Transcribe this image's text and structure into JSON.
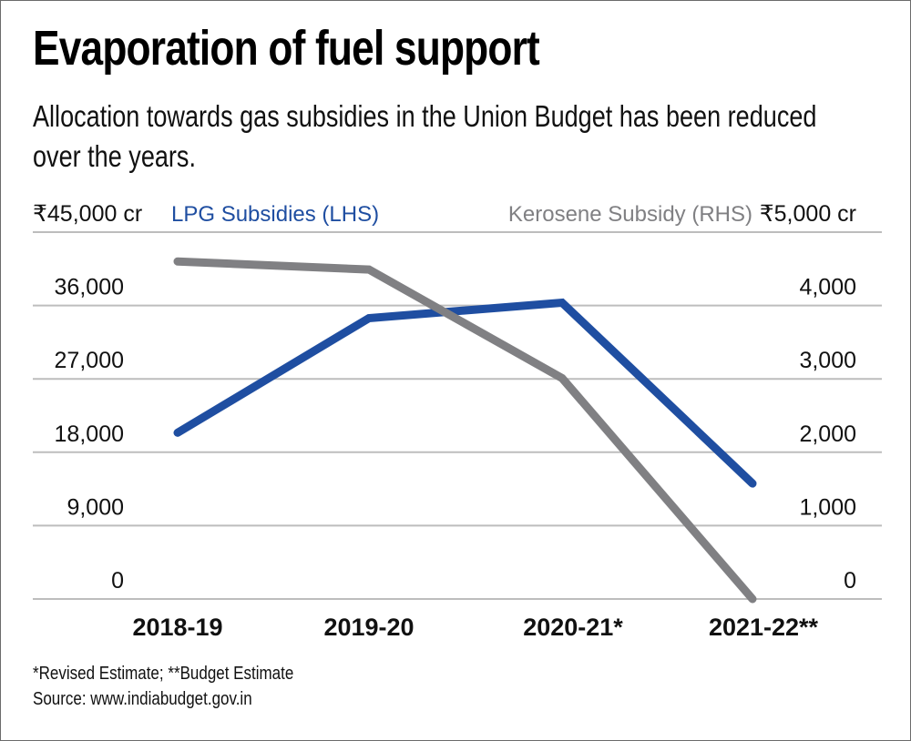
{
  "header": {
    "title": "Evaporation of fuel support",
    "subtitle": "Allocation towards gas subsidies in the Union Budget has been reduced over the years."
  },
  "footer": {
    "note": "*Revised Estimate;  **Budget Estimate",
    "source": "Source: www.indiabudget.gov.in"
  },
  "chart_data": {
    "type": "line",
    "title": "Evaporation of fuel support",
    "categories": [
      "2018-19",
      "2019-20",
      "2020-21*",
      "2021-22**"
    ],
    "left_axis": {
      "top_label": "₹45,000 cr",
      "ticks": [
        0,
        9000,
        18000,
        27000,
        36000,
        45000
      ],
      "tick_labels": [
        "0",
        "9,000",
        "18,000",
        "27,000",
        "36,000",
        "₹45,000 cr"
      ],
      "range": [
        0,
        45000
      ]
    },
    "right_axis": {
      "top_label": "₹5,000 cr",
      "ticks": [
        0,
        1000,
        2000,
        3000,
        4000,
        5000
      ],
      "tick_labels": [
        "0",
        "1,000",
        "2,000",
        "3,000",
        "4,000",
        "₹5,000 cr"
      ],
      "range": [
        0,
        5000
      ]
    },
    "series": [
      {
        "name": "LPG Subsidies (LHS)",
        "axis": "left",
        "color": "#1f4ea1",
        "values": [
          20400,
          34450,
          36350,
          14170
        ]
      },
      {
        "name": "Kerosene Subsidy (RHS)",
        "axis": "right",
        "color": "#808083",
        "values": [
          4600,
          4490,
          3010,
          0
        ]
      }
    ],
    "grid": true,
    "legend": "top"
  }
}
